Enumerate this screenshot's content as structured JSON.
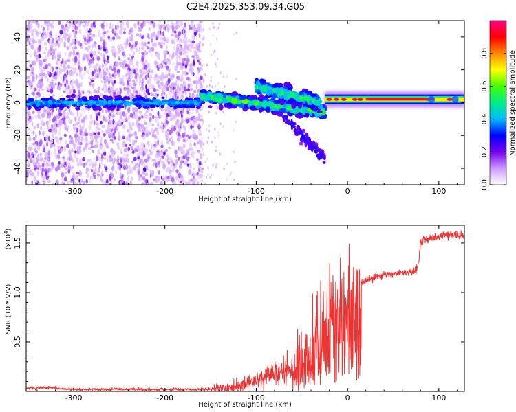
{
  "title": "C2E4.2025.353.09.34.G05",
  "chart_data": [
    {
      "type": "heatmap",
      "name": "spectrogram",
      "xlabel": "Height of straight line (km)",
      "ylabel": "Frequency (Hz)",
      "xlim": [
        -352,
        128
      ],
      "ylim": [
        -50,
        50
      ],
      "xticks": [
        -300,
        -200,
        -100,
        0,
        100
      ],
      "yticks": [
        -40,
        -20,
        0,
        20,
        40
      ],
      "xtick_labels": [
        "-300",
        "-200",
        "-100",
        "0",
        "100"
      ],
      "ytick_labels": [
        "-40",
        "-20",
        "0",
        "20",
        "40"
      ],
      "colorbar": {
        "label": "Normalized spectral amplitude",
        "range": [
          0,
          1
        ],
        "ticks": [
          0.0,
          0.2,
          0.4,
          0.6,
          0.8
        ],
        "tick_labels": [
          "0.0",
          "0.2",
          "0.4",
          "0.6",
          "0.8"
        ],
        "colors": [
          "#ffffff",
          "#cc99ff",
          "#7700ee",
          "#0000ff",
          "#00bbff",
          "#00ee88",
          "#44ff00",
          "#ffff00",
          "#ff8800",
          "#ff0000",
          "#ff0088"
        ]
      },
      "features": [
        {
          "name": "noise-region",
          "x_range": [
            -352,
            -160
          ],
          "freq_range": [
            -50,
            50
          ],
          "amplitude": 0.1
        },
        {
          "name": "center-band",
          "x_range": [
            -352,
            -160
          ],
          "freq": 0,
          "amplitude": 0.35
        },
        {
          "name": "signal-main-band",
          "x_range": [
            -160,
            -25
          ],
          "freq_start": 4,
          "freq_end": -6,
          "amplitude": 0.5
        },
        {
          "name": "signal-upper-band",
          "x_range": [
            -100,
            -30
          ],
          "freq_start": 10,
          "freq_end": 0,
          "amplitude": 0.45
        },
        {
          "name": "signal-lower-tail",
          "x_range": [
            -70,
            -25
          ],
          "freq_start": -8,
          "freq_end": -35,
          "amplitude": 0.2
        },
        {
          "name": "stable-tone",
          "x_range": [
            -25,
            128
          ],
          "freq": 2,
          "amplitude": 0.95
        }
      ]
    },
    {
      "type": "line",
      "name": "snr",
      "xlabel": "Height of straight line (km)",
      "ylabel": "SNR (10 * V/V)",
      "y_multiplier": "(x10",
      "y_multiplier_exp": "4",
      "y_multiplier_close": ")",
      "xlim": [
        -352,
        128
      ],
      "ylim": [
        0,
        1.68
      ],
      "xticks": [
        -300,
        -200,
        -100,
        0,
        100
      ],
      "yticks": [
        0.5,
        1.0,
        1.5
      ],
      "xtick_labels": [
        "-300",
        "-200",
        "-100",
        "0",
        "100"
      ],
      "ytick_labels": [
        "0.5",
        "1.0",
        "1.5"
      ],
      "color": "#ee3333",
      "series": [
        {
          "name": "SNR",
          "x": [
            -352,
            -330,
            -300,
            -250,
            -200,
            -160,
            -140,
            -120,
            -110,
            -100,
            -90,
            -80,
            -70,
            -60,
            -50,
            -40,
            -30,
            -25,
            -20,
            -15,
            -10,
            -5,
            0,
            5,
            10,
            15,
            20,
            30,
            40,
            50,
            60,
            70,
            75,
            78,
            80,
            85,
            90,
            100,
            110,
            120,
            128
          ],
          "y": [
            0.03,
            0.04,
            0.02,
            0.02,
            0.02,
            0.02,
            0.03,
            0.05,
            0.08,
            0.12,
            0.15,
            0.18,
            0.2,
            0.24,
            0.3,
            0.4,
            0.5,
            0.6,
            0.7,
            0.8,
            0.85,
            0.9,
            0.95,
            1.0,
            1.05,
            1.08,
            1.12,
            1.15,
            1.18,
            1.19,
            1.2,
            1.2,
            1.21,
            1.3,
            1.5,
            1.55,
            1.54,
            1.57,
            1.58,
            1.58,
            1.56
          ]
        }
      ]
    }
  ]
}
